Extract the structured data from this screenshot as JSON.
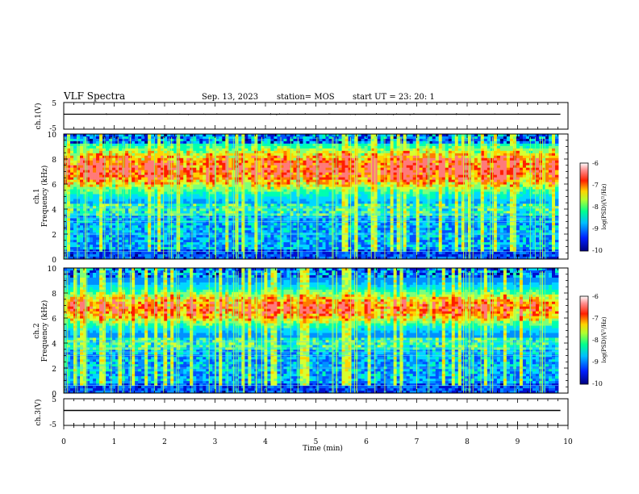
{
  "header": {
    "title": "VLF Spectra",
    "date": "Sep. 13, 2023",
    "station": "station= MOS",
    "start": "start  UT  =   23: 20: 1"
  },
  "colors": {
    "low": "#00007f",
    "mid1": "#0050ff",
    "mid2": "#00d8ff",
    "mid3": "#7dff7a",
    "high1": "#ffd400",
    "high2": "#ff1e00",
    "max": "#ffffff"
  },
  "chart_data": [
    {
      "type": "line",
      "ylabel": "ch.1(V)",
      "ylim": [
        -5,
        5
      ],
      "yticks": [
        "5",
        "-5"
      ],
      "xlim": [
        0,
        10
      ],
      "series": [
        {
          "x": [
            0,
            9.85
          ],
          "y": [
            0,
            0
          ]
        }
      ]
    },
    {
      "type": "heatmap",
      "ylabel": "ch.1",
      "ylabel2": "Frequency (kHz)",
      "ylim": [
        0,
        10
      ],
      "yticks": [
        "0",
        "2",
        "4",
        "6",
        "8",
        "10"
      ],
      "xlim": [
        0,
        10
      ],
      "colorbar": {
        "label": "log(PSD)(V²/Hz)",
        "range": [
          -10,
          -6
        ],
        "ticks": [
          "-6",
          "-7",
          "-8",
          "-9",
          "-10"
        ]
      }
    },
    {
      "type": "heatmap",
      "ylabel": "ch.2",
      "ylabel2": "Frequency (kHz)",
      "ylim": [
        0,
        10
      ],
      "yticks": [
        "0",
        "2",
        "4",
        "6",
        "8",
        "10"
      ],
      "xlim": [
        0,
        10
      ],
      "colorbar": {
        "label": "log(PSD)(V²/Hz)",
        "range": [
          -10,
          -6
        ],
        "ticks": [
          "-6",
          "-7",
          "-8",
          "-9",
          "-10"
        ]
      }
    },
    {
      "type": "line",
      "ylabel": "ch.3(V)",
      "ylim": [
        -5,
        5
      ],
      "yticks": [
        "5",
        "-5"
      ],
      "xlim": [
        0,
        10
      ],
      "series": [
        {
          "x": [
            0,
            9.85
          ],
          "y": [
            0,
            0
          ]
        }
      ]
    }
  ],
  "xaxis": {
    "label": "Time (min)",
    "ticks": [
      "0",
      "1",
      "2",
      "3",
      "4",
      "5",
      "6",
      "7",
      "8",
      "9",
      "10"
    ]
  }
}
